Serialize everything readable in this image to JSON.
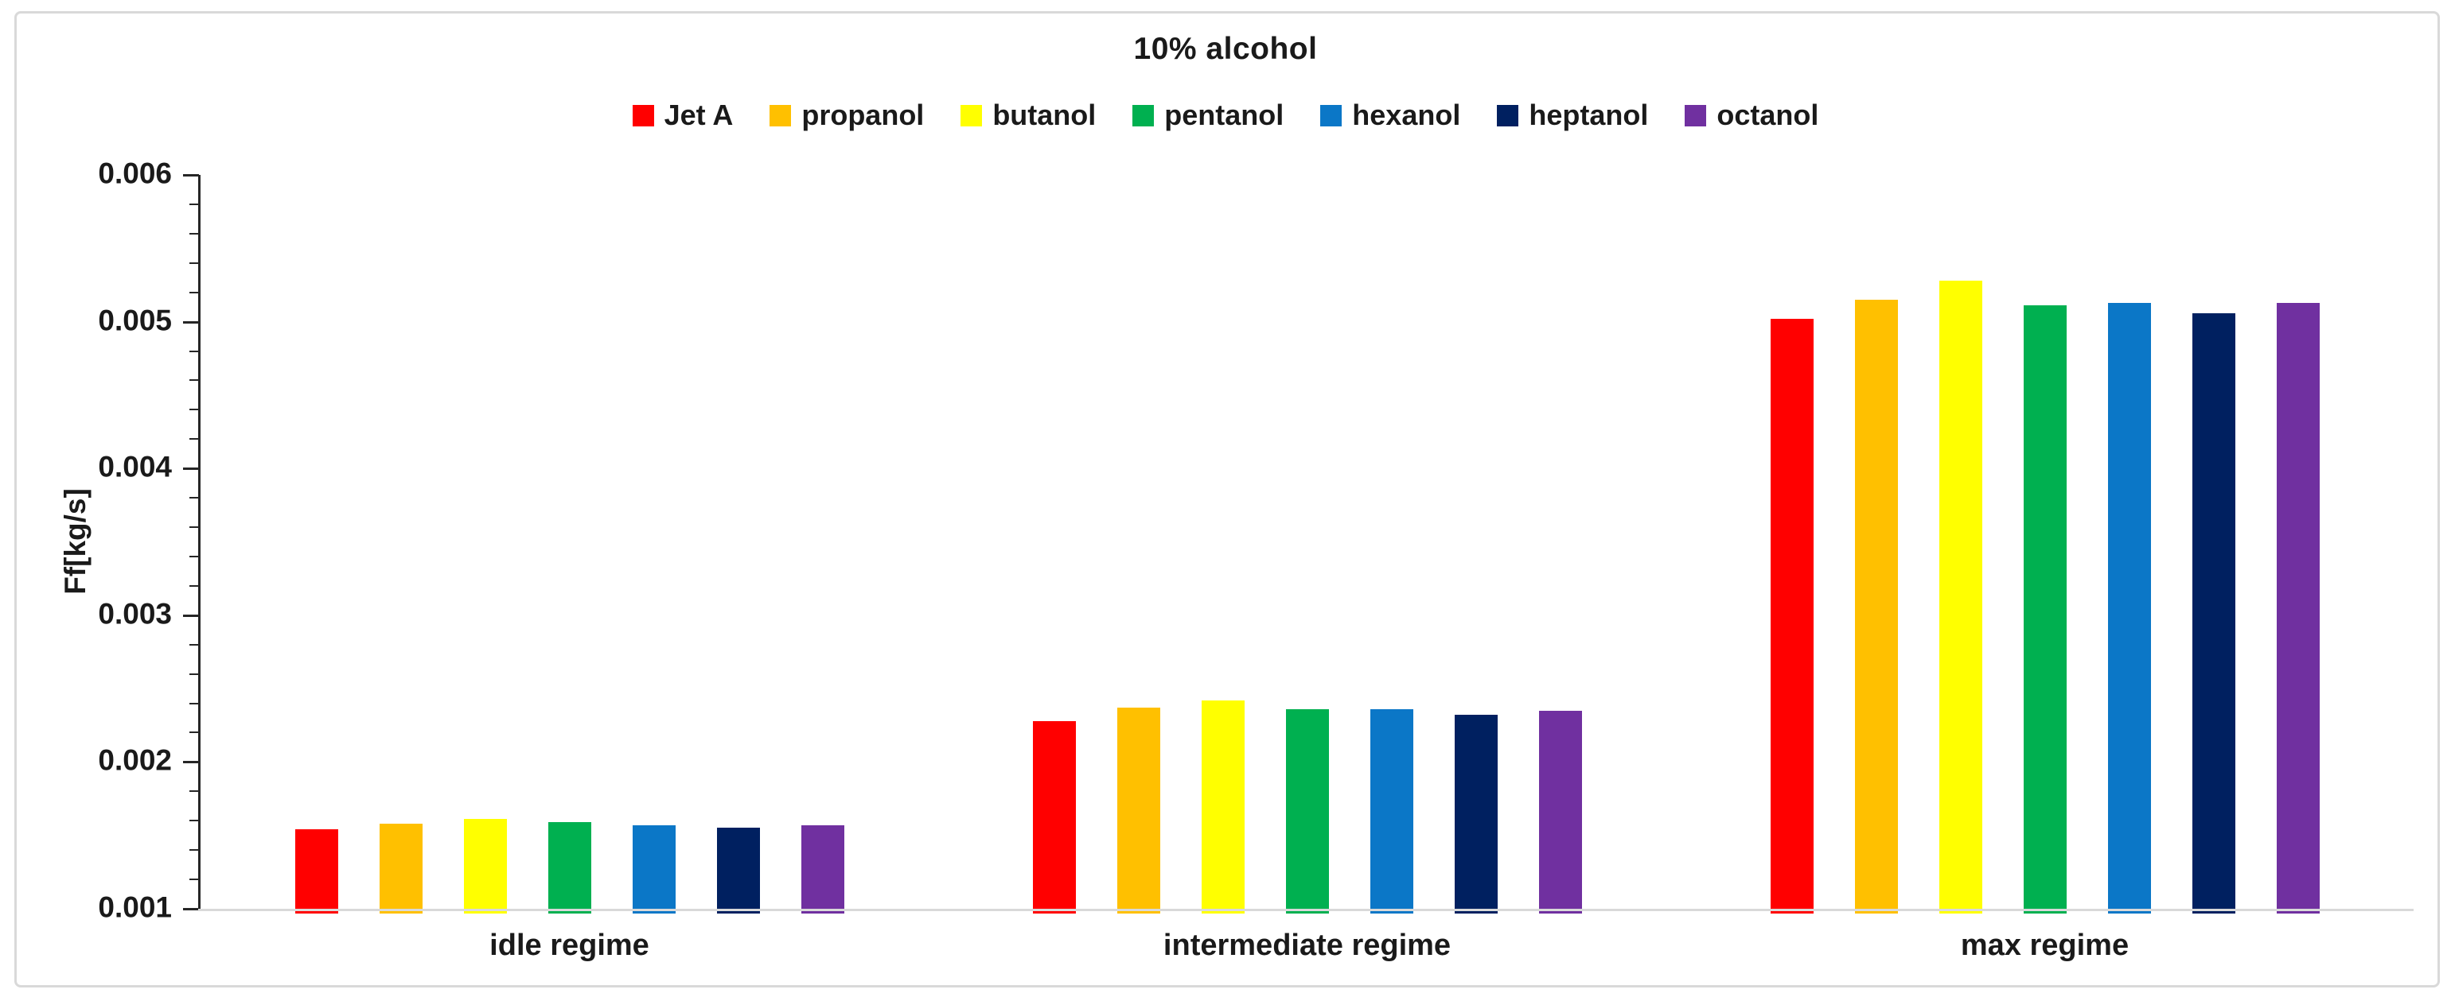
{
  "chart_data": {
    "type": "bar",
    "title": "10% alcohol",
    "xlabel": "",
    "ylabel": "Ff[kg/s]",
    "ylim": [
      0.001,
      0.006
    ],
    "y_major_step": 0.001,
    "y_minor_step": 0.0002,
    "y_tick_labels": [
      "0.006",
      "0.005",
      "0.004",
      "0.003",
      "0.002",
      "0.001"
    ],
    "grid": false,
    "legend_position": "top-center",
    "categories": [
      "idle regime",
      "intermediate regime",
      "max regime"
    ],
    "series": [
      {
        "name": "Jet A",
        "color": "#FF0000",
        "values": [
          0.00154,
          0.00228,
          0.00502
        ]
      },
      {
        "name": "propanol",
        "color": "#FFC000",
        "values": [
          0.00158,
          0.00237,
          0.00515
        ]
      },
      {
        "name": "butanol",
        "color": "#FFFF00",
        "values": [
          0.00161,
          0.00242,
          0.00528
        ]
      },
      {
        "name": "pentanol",
        "color": "#00B050",
        "values": [
          0.00159,
          0.00236,
          0.00511
        ]
      },
      {
        "name": "hexanol",
        "color": "#0B77C7",
        "values": [
          0.00157,
          0.00236,
          0.00513
        ]
      },
      {
        "name": "heptanol",
        "color": "#002060",
        "values": [
          0.00155,
          0.00232,
          0.00506
        ]
      },
      {
        "name": "octanol",
        "color": "#7030A0",
        "values": [
          0.00157,
          0.00235,
          0.00513
        ]
      }
    ],
    "axis_color": "#262626",
    "baseline_color": "#d9d9d9",
    "frame_border_color": "#d9d9d9",
    "text_color": "#1a1a1a"
  }
}
